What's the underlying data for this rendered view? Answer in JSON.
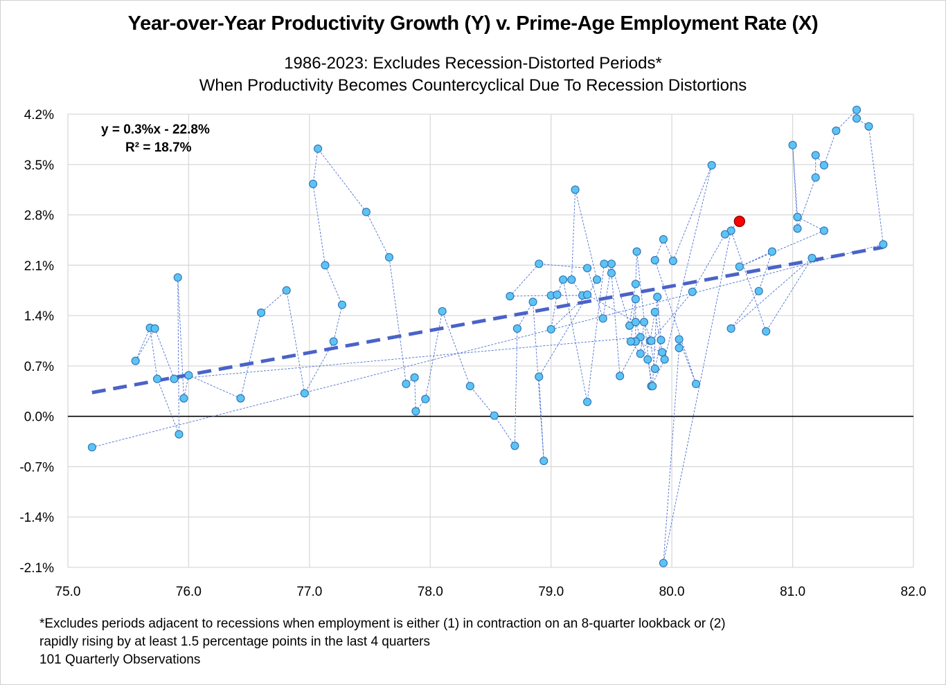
{
  "chart_data": {
    "type": "scatter",
    "title": "Year-over-Year Productivity Growth (Y) v. Prime-Age Employment Rate (X)",
    "subtitle_lines": [
      "1986-2023: Excludes Recession-Distorted Periods*",
      "When Productivity Becomes Countercyclical Due To Recession Distortions"
    ],
    "xlabel": "",
    "ylabel": "",
    "xlim": [
      75.0,
      82.0
    ],
    "ylim": [
      -2.1,
      4.2
    ],
    "x_ticks": [
      75.0,
      76.0,
      77.0,
      78.0,
      79.0,
      80.0,
      81.0,
      82.0
    ],
    "x_tick_labels": [
      "75.0",
      "76.0",
      "77.0",
      "78.0",
      "79.0",
      "80.0",
      "81.0",
      "82.0"
    ],
    "y_ticks": [
      4.2,
      3.5,
      2.8,
      2.1,
      1.4,
      0.7,
      0.0,
      -0.7,
      -1.4,
      -2.1
    ],
    "y_tick_labels": [
      "4.2%",
      "3.5%",
      "2.8%",
      "2.1%",
      "1.4%",
      "0.7%",
      "0.0%",
      "-0.7%",
      "-1.4%",
      "-2.1%"
    ],
    "grid": true,
    "trendline": {
      "equation": "y = 0.3%x - 22.8%",
      "r_squared": "R² = 18.7%",
      "x_range": [
        75.2,
        81.75
      ],
      "y_range": [
        0.33,
        2.35
      ],
      "style": "dashed"
    },
    "series": [
      {
        "name": "Quarterly observations",
        "connected": true,
        "x": [
          75.2,
          81.75,
          81.63,
          81.53,
          81.53,
          81.36,
          81.26,
          81.19,
          81.19,
          81.04,
          81.0,
          81.04,
          81.26,
          80.56,
          80.83,
          80.72,
          80.49,
          81.16,
          80.78,
          80.49,
          79.93,
          80.06,
          80.06,
          80.2,
          79.86,
          79.93,
          80.01,
          80.33,
          79.94,
          79.83,
          79.71,
          79.7,
          79.65,
          79.5,
          79.43,
          79.3,
          78.9,
          78.66,
          79.0,
          79.26,
          79.17,
          79.2,
          79.38,
          78.9,
          78.94,
          78.85,
          78.72,
          78.7,
          78.53,
          78.33,
          78.1,
          77.96,
          77.88,
          77.87,
          77.8,
          77.66,
          77.47,
          77.07,
          77.03,
          77.13,
          77.27,
          77.2,
          76.96,
          76.81,
          76.6,
          76.43,
          76.0,
          75.96,
          75.91,
          75.92,
          75.74,
          75.68,
          75.56,
          75.72,
          75.88,
          79.74,
          79.57,
          79.5,
          79.44,
          79.3,
          79.1,
          79.05,
          79.0,
          79.3,
          79.7,
          79.8,
          79.84,
          79.88,
          79.91,
          79.86,
          79.82,
          79.86,
          79.92,
          79.7,
          79.7,
          79.66,
          79.74,
          79.77,
          79.83,
          80.17,
          80.44
        ],
        "y": [
          -0.43,
          2.39,
          4.03,
          4.14,
          4.26,
          3.97,
          3.49,
          3.63,
          3.32,
          2.61,
          3.77,
          2.77,
          2.58,
          2.08,
          2.29,
          1.74,
          1.22,
          2.2,
          1.18,
          2.58,
          -2.04,
          0.95,
          1.07,
          0.45,
          2.17,
          2.46,
          2.16,
          3.49,
          0.79,
          0.42,
          2.29,
          1.84,
          1.26,
          2.12,
          1.36,
          2.06,
          2.12,
          1.67,
          1.68,
          1.68,
          1.9,
          3.15,
          1.9,
          0.55,
          -0.62,
          1.59,
          1.22,
          -0.41,
          0.01,
          0.42,
          1.46,
          0.24,
          0.07,
          0.54,
          0.45,
          2.21,
          2.84,
          3.72,
          3.23,
          2.1,
          1.55,
          1.04,
          0.32,
          1.75,
          1.44,
          0.25,
          0.57,
          0.25,
          1.93,
          -0.25,
          0.52,
          1.23,
          0.77,
          1.22,
          0.52,
          1.1,
          0.56,
          1.99,
          2.12,
          0.2,
          1.9,
          1.69,
          1.21,
          1.69,
          1.31,
          0.79,
          0.42,
          1.66,
          1.06,
          0.66,
          1.05,
          1.45,
          0.89,
          1.04,
          1.63,
          1.04,
          0.87,
          1.31,
          1.05,
          1.73,
          2.53
        ],
        "marker_color": "#5bc4f5",
        "line_color": "#4a6fd0"
      },
      {
        "name": "Latest observation",
        "x": [
          80.56
        ],
        "y": [
          2.71
        ],
        "marker_color": "#ff0000"
      }
    ],
    "footnote_lines": [
      "*Excludes periods adjacent to recessions when employment is either (1) in contraction on an 8-quarter lookback or (2)",
      "rapidly rising by at least 1.5 percentage points in the last 4 quarters",
      "101 Quarterly Observations"
    ]
  },
  "colors": {
    "gridline": "#d9d9d9",
    "zero_line": "#000000",
    "trendline": "#4a63c8",
    "marker_edge": "#2f6fb0",
    "highlight_edge": "#8b0000"
  }
}
